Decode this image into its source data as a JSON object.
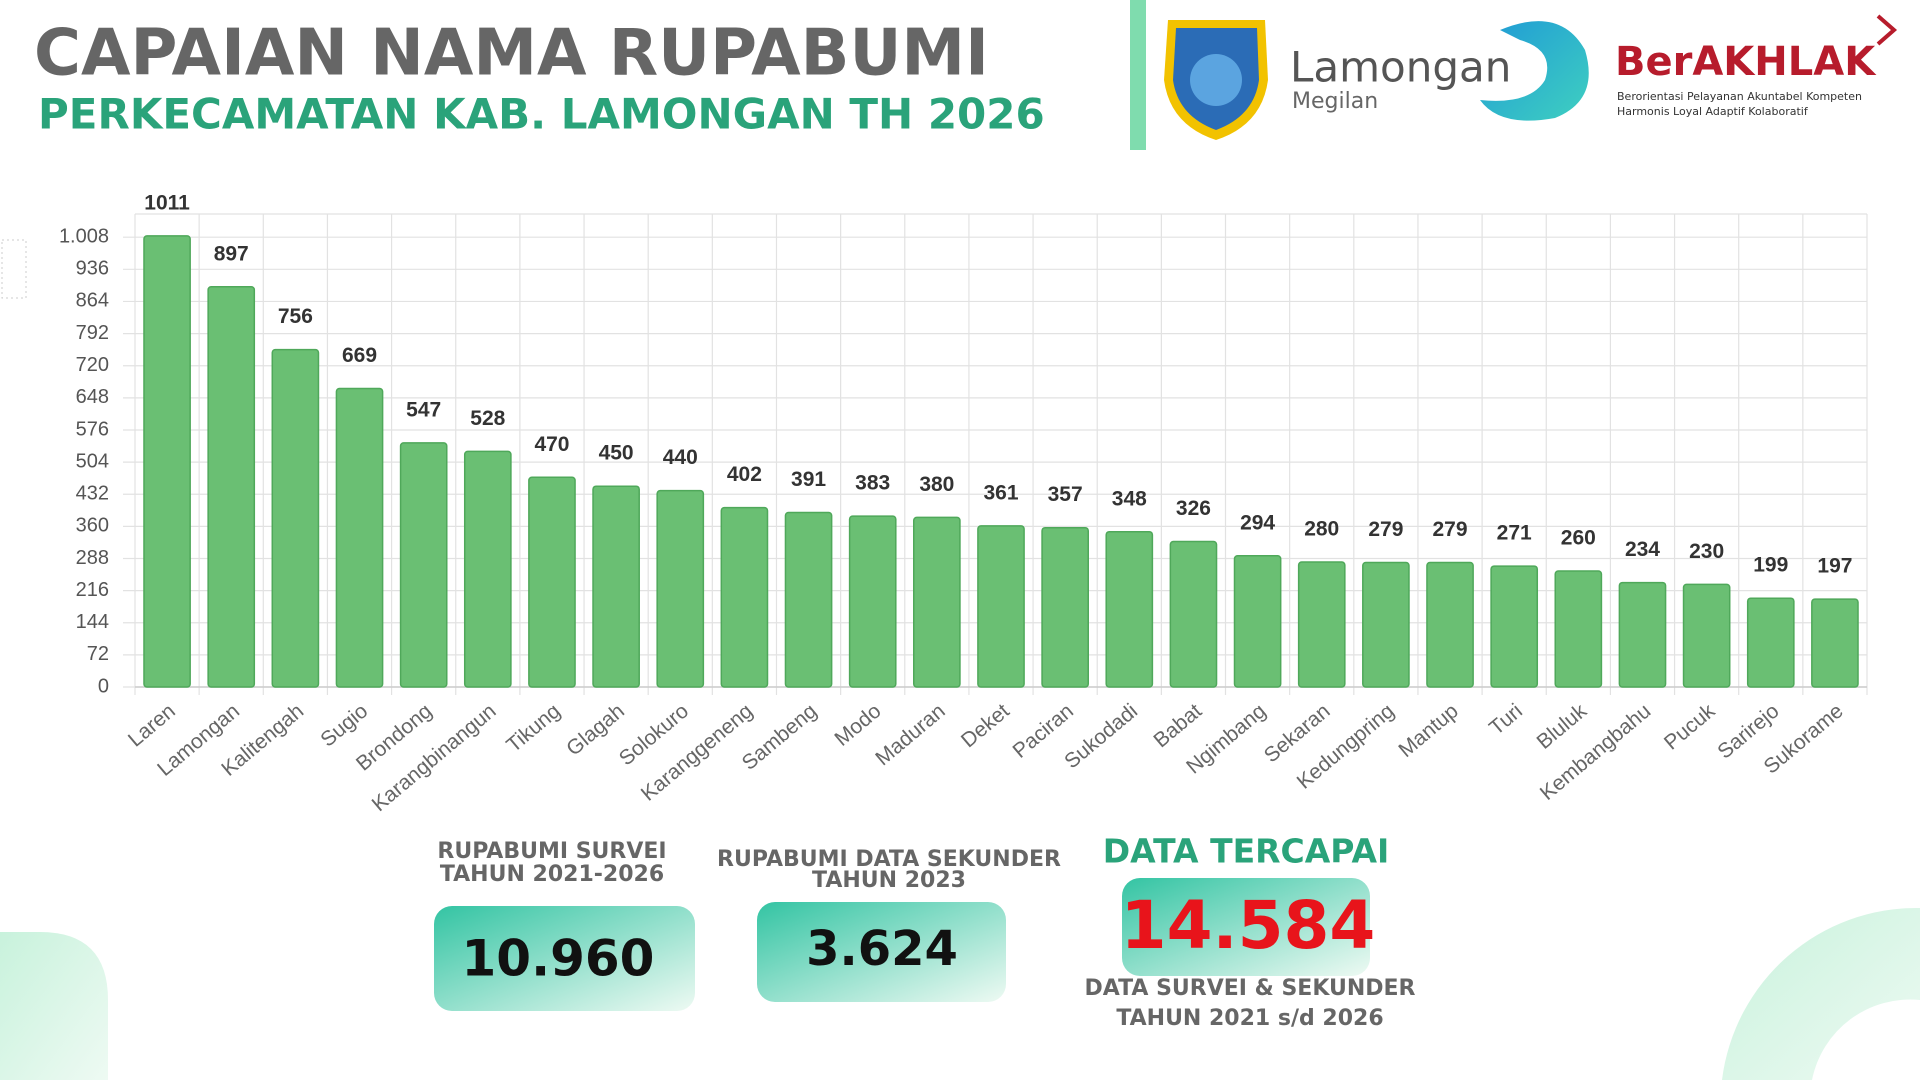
{
  "header": {
    "title": "CAPAIAN NAMA RUPABUMI",
    "subtitle": "PERKECAMATAN KAB. LAMONGAN TH 2026"
  },
  "logos": {
    "brand": "Lamongan",
    "brand_sub": "Megilan",
    "berakhlak": "BerAKHLAK",
    "tagline_1": "Berorientasi Pelayanan Akuntabel Kompeten",
    "tagline_2": "Harmonis Loyal Adaptif Kolaboratif"
  },
  "chart_data": {
    "type": "bar",
    "categories": [
      "Laren",
      "Lamongan",
      "Kalitengah",
      "Sugio",
      "Brondong",
      "Karangbinangun",
      "Tikung",
      "Glagah",
      "Solokuro",
      "Karanggeneng",
      "Sambeng",
      "Modo",
      "Maduran",
      "Deket",
      "Paciran",
      "Sukodadi",
      "Babat",
      "Ngimbang",
      "Sekaran",
      "Kedungpring",
      "Mantup",
      "Turi",
      "Bluluk",
      "Kembangbahu",
      "Pucuk",
      "Sarirejo",
      "Sukorame"
    ],
    "values": [
      1011,
      897,
      756,
      669,
      547,
      528,
      470,
      450,
      440,
      402,
      391,
      383,
      380,
      361,
      357,
      348,
      326,
      294,
      280,
      279,
      279,
      271,
      260,
      234,
      230,
      199,
      197
    ],
    "color": "#6abf73",
    "ylim": [
      0,
      1060
    ],
    "yticks": [
      0,
      72,
      144,
      216,
      288,
      360,
      432,
      504,
      576,
      648,
      720,
      792,
      864,
      936,
      {
        "value": 1008,
        "label": "1.008"
      }
    ],
    "grid": true
  },
  "stats": [
    {
      "label_1": "RUPABUMI SURVEI",
      "label_2": "TAHUN 2021-2026",
      "value": "10.960"
    },
    {
      "label_1": "RUPABUMI DATA SEKUNDER",
      "label_2": "TAHUN 2023",
      "value": "3.624"
    },
    {
      "heading": "DATA TERCAPAI",
      "value": "14.584",
      "label_1": "DATA SURVEI & SEKUNDER",
      "label_2": "TAHUN 2021 s/d 2026"
    }
  ]
}
